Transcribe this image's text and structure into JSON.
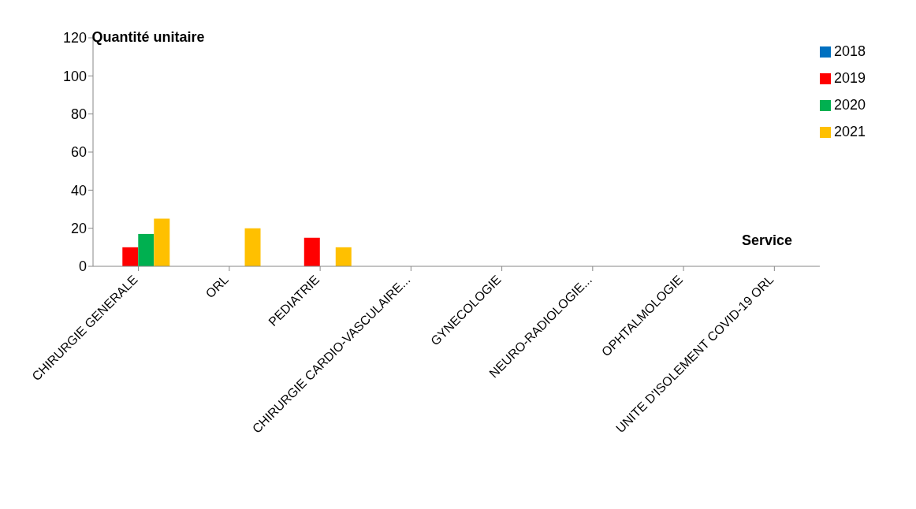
{
  "chart_data": {
    "type": "bar",
    "ylabel": "Quantité unitaire",
    "xlabel": "Service",
    "categories": [
      "CHIRURGIE GENERALE",
      "ORL",
      "PEDIATRIE",
      "CHIRURGIE CARDIO-VASCULAIRE...",
      "GYNECOLOGIE",
      "NEURO-RADIOLOGIE...",
      "OPHTALMOLOGIE",
      "UNITE D'ISOLEMENT COVID-19 ORL"
    ],
    "series": [
      {
        "name": "2018",
        "color": "#0070c0",
        "values": [
          0,
          0,
          0,
          0,
          0,
          0,
          0,
          0
        ]
      },
      {
        "name": "2019",
        "color": "#ff0000",
        "values": [
          10,
          0,
          15,
          0,
          0,
          0,
          0,
          0
        ]
      },
      {
        "name": "2020",
        "color": "#00b050",
        "values": [
          17,
          0,
          0,
          0,
          0,
          0,
          0,
          0
        ]
      },
      {
        "name": "2021",
        "color": "#ffc000",
        "values": [
          25,
          20,
          10,
          0,
          0,
          0,
          0,
          0
        ]
      }
    ],
    "ylim": [
      0,
      120
    ],
    "yticks": [
      0,
      20,
      40,
      60,
      80,
      100,
      120
    ],
    "grid": false,
    "legend": "top right"
  }
}
